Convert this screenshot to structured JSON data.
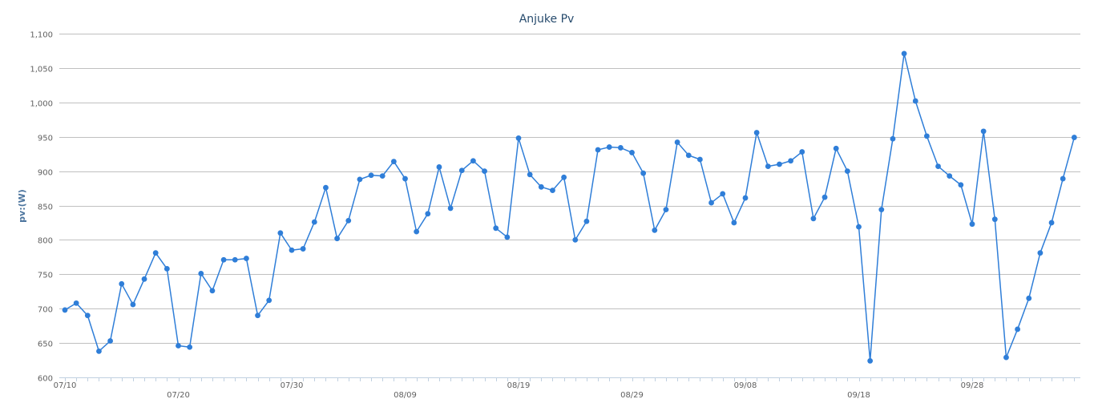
{
  "chart_data": {
    "type": "line",
    "title": "Anjuke Pv",
    "xlabel": "",
    "ylabel": "pv:(W)",
    "ylim": [
      600,
      1100
    ],
    "y_ticks": [
      600,
      650,
      700,
      750,
      800,
      850,
      900,
      950,
      1000,
      1050,
      1100
    ],
    "y_tick_labels": [
      "600",
      "650",
      "700",
      "750",
      "800",
      "850",
      "900",
      "950",
      "1,000",
      "1,050",
      "1,100"
    ],
    "x_tick_labels": [
      "07/10",
      "07/20",
      "07/30",
      "08/09",
      "08/19",
      "08/29",
      "09/08",
      "09/18",
      "09/28"
    ],
    "grid": true,
    "legend": "none",
    "colors": {
      "series": "#2f7ed8",
      "grid": "#c0c0c0",
      "axis": "#c0d0e0"
    },
    "series": [
      {
        "values": [
          698,
          708,
          690,
          638,
          653,
          736,
          706,
          743,
          781,
          758,
          646,
          644,
          751,
          726,
          771,
          771,
          773,
          690,
          712,
          810,
          785,
          787,
          826,
          876,
          802,
          828,
          888,
          894,
          893,
          914,
          889,
          812,
          838,
          906,
          846,
          901,
          915,
          900,
          817,
          804,
          948,
          895,
          877,
          872,
          891,
          800,
          827,
          931,
          935,
          934,
          927,
          897,
          814,
          844,
          942,
          923,
          917,
          854,
          867,
          825,
          861,
          956,
          907,
          910,
          915,
          928,
          831,
          862,
          933,
          900,
          819,
          624,
          844,
          947,
          1071,
          1002,
          951,
          907,
          893,
          880,
          823,
          958,
          830,
          629,
          670,
          715,
          781,
          825,
          889,
          949
        ]
      }
    ]
  }
}
